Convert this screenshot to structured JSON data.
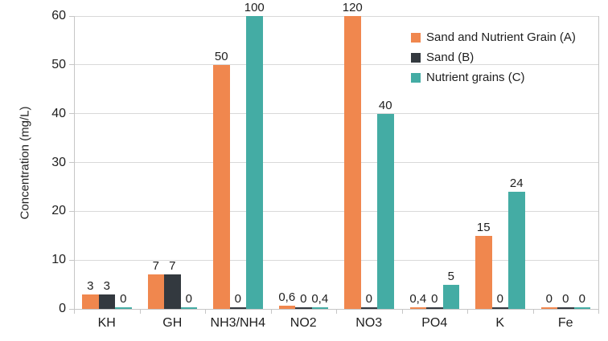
{
  "chart_data": {
    "type": "bar",
    "title": "",
    "xlabel": "",
    "ylabel": "Concentration (mg/L)",
    "ylim": [
      0,
      60
    ],
    "yticks": [
      0,
      10,
      20,
      30,
      40,
      50,
      60
    ],
    "grid": "horizontal",
    "legend_position": "top-right-inside",
    "data_labels": true,
    "decimal_separator": ",",
    "categories": [
      "KH",
      "GH",
      "NH3/NH4",
      "NO2",
      "NO3",
      "PO4",
      "K",
      "Fe"
    ],
    "series": [
      {
        "name": "Sand and Nutrient Grain (A)",
        "color": "#F0874E",
        "values": [
          3,
          7,
          50,
          0.6,
          120,
          0.4,
          15,
          0
        ]
      },
      {
        "name": "Sand (B)",
        "color": "#33393F",
        "values": [
          3,
          7,
          0,
          0,
          0,
          0,
          0,
          0
        ]
      },
      {
        "name": "Nutrient grains (C)",
        "color": "#44ACA4",
        "values": [
          0,
          0,
          100,
          0.4,
          40,
          5,
          24,
          0
        ]
      }
    ],
    "colors": {
      "grid": "#d9d9d9",
      "axis": "#c6c6c6",
      "text": "#1e1e1e"
    }
  }
}
